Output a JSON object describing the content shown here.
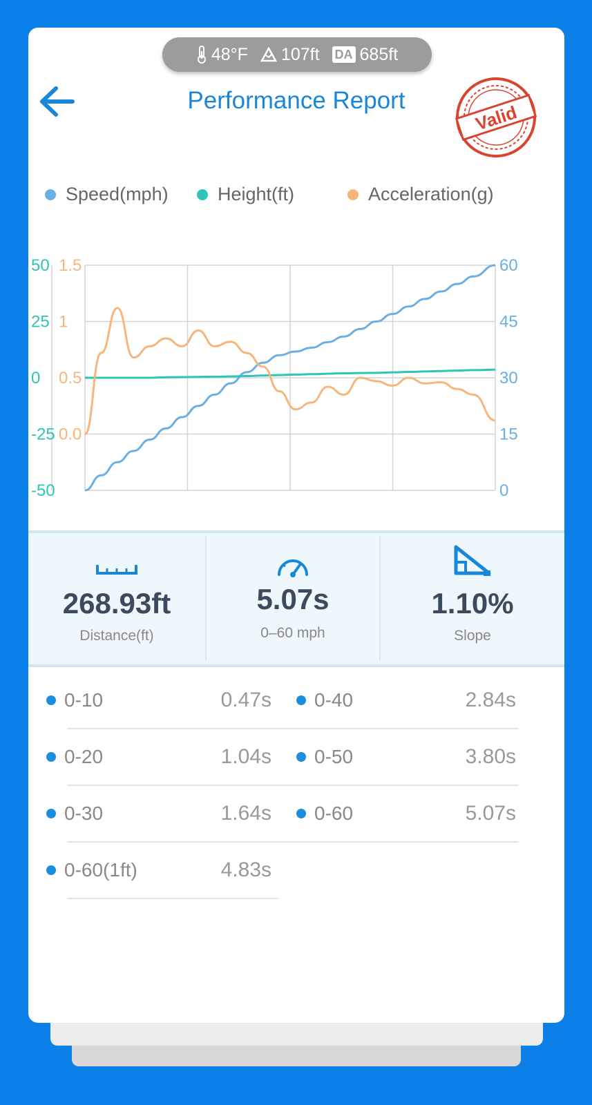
{
  "conditions": {
    "temperature": "48°F",
    "elevation": "107ft",
    "density_altitude_label": "DA",
    "density_altitude": "685ft",
    "icons": [
      "thermometer-icon",
      "mountain-icon",
      "density-altitude-icon"
    ]
  },
  "header": {
    "title": "Performance Report",
    "back_icon": "back-arrow-icon",
    "stamp_text": "Valid"
  },
  "legend": [
    {
      "label": "Speed(mph)",
      "color": "#6aaee6"
    },
    {
      "label": "Height(ft)",
      "color": "#2ec4b6"
    },
    {
      "label": "Acceleration(g)",
      "color": "#f7b57c"
    }
  ],
  "chart_data": {
    "type": "line",
    "x": [
      0,
      0.2,
      0.4,
      0.6,
      0.8,
      1.0,
      1.2,
      1.4,
      1.6,
      1.8,
      2.0,
      2.2,
      2.4,
      2.6,
      2.8,
      3.0,
      3.2,
      3.4,
      3.6,
      3.8,
      4.0,
      4.2,
      4.4,
      4.6,
      4.8,
      5.07
    ],
    "xlim": [
      0,
      5.07
    ],
    "axes": {
      "height": {
        "ticks": [
          "50",
          "25",
          "0",
          "-25",
          "-50"
        ],
        "ylim": [
          -50,
          50
        ],
        "color": "#2ec4b6"
      },
      "acceleration": {
        "ticks": [
          "1.5",
          "1",
          "0.5",
          "0.0"
        ],
        "ylim": [
          -0.5,
          1.5
        ],
        "color": "#f7b57c"
      },
      "speed": {
        "ticks": [
          "60",
          "45",
          "30",
          "15",
          "0"
        ],
        "ylim": [
          0,
          60
        ],
        "color": "#6aaee6"
      }
    },
    "grid": true,
    "series": [
      {
        "name": "Speed(mph)",
        "axis": "speed",
        "color": "#6aaee6",
        "values": [
          0,
          4,
          7.5,
          10.5,
          13.5,
          16.5,
          19.5,
          22.5,
          25.5,
          28.5,
          31.5,
          34,
          36,
          37,
          38,
          39.5,
          41,
          43,
          45,
          47,
          49,
          51,
          53,
          55,
          57,
          60
        ]
      },
      {
        "name": "Height(ft)",
        "axis": "height",
        "color": "#2ec4b6",
        "values": [
          0,
          0,
          0,
          0,
          0,
          0.2,
          0.3,
          0.4,
          0.5,
          0.6,
          0.8,
          1,
          1.2,
          1.4,
          1.6,
          1.8,
          2,
          2.1,
          2.2,
          2.4,
          2.6,
          2.8,
          3,
          3.2,
          3.4,
          3.6
        ]
      },
      {
        "name": "Acceleration(g)",
        "axis": "acceleration",
        "color": "#f7b57c",
        "values": [
          0.0,
          0.72,
          1.12,
          0.68,
          0.78,
          0.85,
          0.78,
          0.92,
          0.78,
          0.82,
          0.72,
          0.6,
          0.38,
          0.22,
          0.28,
          0.42,
          0.35,
          0.5,
          0.47,
          0.43,
          0.5,
          0.45,
          0.46,
          0.4,
          0.35,
          0.12
        ]
      }
    ]
  },
  "stats": [
    {
      "icon": "ruler-icon",
      "value": "268.93ft",
      "label": "Distance(ft)"
    },
    {
      "icon": "speedometer-icon",
      "value": "5.07s",
      "label": "0–60 mph"
    },
    {
      "icon": "slope-icon",
      "value": "1.10%",
      "label": "Slope"
    }
  ],
  "times": [
    {
      "label": "0-10",
      "value": "0.47s"
    },
    {
      "label": "0-40",
      "value": "2.84s"
    },
    {
      "label": "0-20",
      "value": "1.04s"
    },
    {
      "label": "0-50",
      "value": "3.80s"
    },
    {
      "label": "0-30",
      "value": "1.64s"
    },
    {
      "label": "0-60",
      "value": "5.07s"
    },
    {
      "label": "0-60(1ft)",
      "value": "4.83s"
    }
  ]
}
